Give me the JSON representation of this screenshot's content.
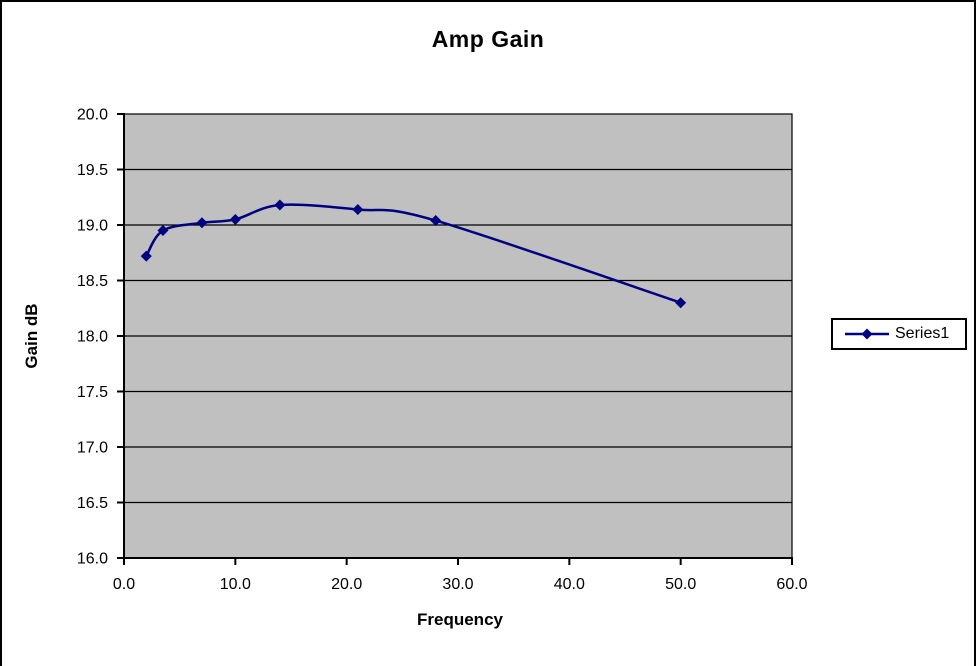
{
  "chart_data": {
    "type": "line",
    "title": "Amp Gain",
    "xlabel": "Frequency",
    "ylabel": "Gain dB",
    "xlim": [
      0,
      60
    ],
    "ylim": [
      16.0,
      20.0
    ],
    "x_ticks": [
      0,
      10,
      20,
      30,
      40,
      50,
      60
    ],
    "x_tick_labels": [
      "0.0",
      "10.0",
      "20.0",
      "30.0",
      "40.0",
      "50.0",
      "60.0"
    ],
    "y_ticks": [
      20.0,
      19.5,
      19.0,
      18.5,
      18.0,
      17.5,
      17.0,
      16.5,
      16.0
    ],
    "y_tick_labels": [
      "20.0",
      "19.5",
      "19.0",
      "18.5",
      "18.0",
      "17.5",
      "17.0",
      "16.5",
      "16.0"
    ],
    "grid": "horizontal-only",
    "plot_bg": "#C0C0C0",
    "grid_color": "#000000",
    "axis_color": "#000000",
    "legend_position": "right",
    "series": [
      {
        "name": "Series1",
        "color": "#000080",
        "marker": "diamond",
        "smoothed": true,
        "x": [
          2,
          3.5,
          7,
          10,
          14,
          21,
          28,
          50
        ],
        "y": [
          18.72,
          18.95,
          19.02,
          19.05,
          19.18,
          19.14,
          19.04,
          18.3
        ]
      }
    ]
  }
}
